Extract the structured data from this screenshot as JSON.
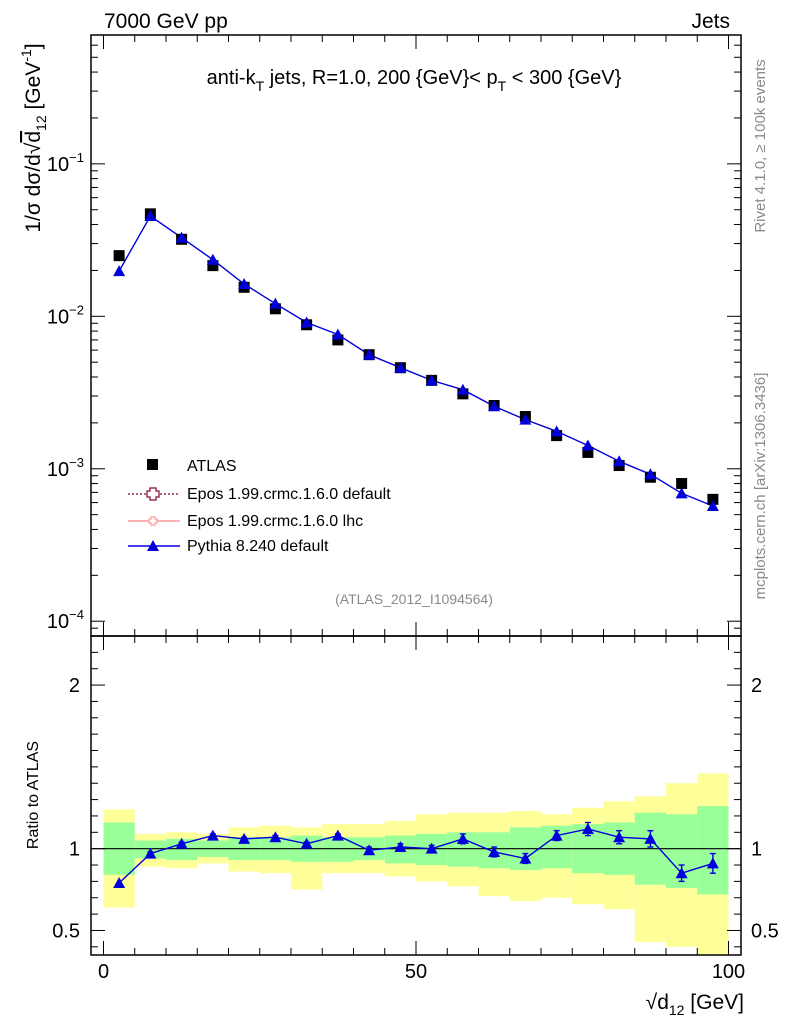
{
  "header": {
    "left": "7000 GeV pp",
    "right": "Jets"
  },
  "side_labels": {
    "top": "Rivet 4.1.0, ≥ 100k events",
    "bottom": "mcplots.cern.ch [arXiv:1306.3436]"
  },
  "colors": {
    "data": "#000000",
    "pythia": "#0000dd",
    "epos_default": "#993355",
    "epos_lhc": "#ff9999",
    "band_green": "#99ff99",
    "band_yellow": "#ffff99"
  },
  "chart_data": [
    {
      "type": "scatter",
      "name": "main",
      "title": "anti-kT jets, R=1.0, 200 {GeV}< pT < 300 {GeV}",
      "title_parts": {
        "a": "anti-k",
        "a_sub": "T",
        "b": " jets, R=1.0, 200 {GeV}< p",
        "b_sub": "T",
        "c": " < 300 {GeV}"
      },
      "ylabel": "1/σ dσ/d√d12 [GeV-1]",
      "ylabel_parts": {
        "a": "1/σ dσ/d",
        "root": "√",
        "d": "d",
        "d_sub": "12",
        "b": " [GeV",
        "sup": "-1",
        "c": "]"
      },
      "yscale": "log",
      "xlim": [
        -2,
        102
      ],
      "ylim": [
        8e-05,
        0.7
      ],
      "ytick_labels": [
        {
          "base": "10",
          "exp": "−1",
          "value": 0.1
        },
        {
          "base": "10",
          "exp": "−2",
          "value": 0.01
        },
        {
          "base": "10",
          "exp": "−3",
          "value": 0.001
        },
        {
          "base": "10",
          "exp": "−4",
          "value": 0.0001
        }
      ],
      "x": [
        2.5,
        7.5,
        12.5,
        17.5,
        22.5,
        27.5,
        32.5,
        37.5,
        42.5,
        47.5,
        52.5,
        57.5,
        62.5,
        67.5,
        72.5,
        77.5,
        82.5,
        87.5,
        92.5,
        97.5
      ],
      "series": [
        {
          "name": "ATLAS",
          "marker": "square",
          "values": [
            0.025,
            0.047,
            0.032,
            0.0215,
            0.0155,
            0.0112,
            0.0088,
            0.007,
            0.0056,
            0.0046,
            0.0038,
            0.0031,
            0.0026,
            0.0022,
            0.00165,
            0.00128,
            0.00105,
            0.00088,
            0.0008,
            0.00063
          ]
        },
        {
          "name": "Epos 1.99.crmc.1.6.0 default",
          "marker": "open-cross",
          "line": "dotted",
          "values": []
        },
        {
          "name": "Epos 1.99.crmc.1.6.0 lhc",
          "marker": "open-cross-small",
          "line": "solid",
          "values": []
        },
        {
          "name": "Pythia 8.240 default",
          "marker": "triangle",
          "line": "solid",
          "values": [
            0.0198,
            0.0455,
            0.0328,
            0.0235,
            0.0163,
            0.0121,
            0.0091,
            0.0076,
            0.0056,
            0.0046,
            0.0038,
            0.0033,
            0.00257,
            0.0021,
            0.00176,
            0.00142,
            0.00112,
            0.00092,
            0.00069,
            0.00057
          ]
        }
      ],
      "watermark": "(ATLAS_2012_I1094564)",
      "legend_position": "lower-left"
    },
    {
      "type": "scatter",
      "name": "ratio",
      "ylabel": "Ratio to ATLAS",
      "xlabel": "√d12 [GeV]",
      "xlabel_parts": {
        "root": "√",
        "d": "d",
        "d_sub": "12",
        "rest": " [GeV]"
      },
      "xlim": [
        -2,
        102
      ],
      "ylim": [
        0.35,
        2.3
      ],
      "xticks": [
        0,
        50,
        100
      ],
      "yticks": [
        0.5,
        1,
        2
      ],
      "ytick_labels": [
        "0.5",
        "1",
        "2"
      ],
      "reference_line": 1,
      "bins": [
        [
          0,
          5
        ],
        [
          5,
          10
        ],
        [
          10,
          15
        ],
        [
          15,
          20
        ],
        [
          20,
          25
        ],
        [
          25,
          30
        ],
        [
          30,
          35
        ],
        [
          35,
          40
        ],
        [
          40,
          45
        ],
        [
          45,
          50
        ],
        [
          50,
          55
        ],
        [
          55,
          60
        ],
        [
          60,
          65
        ],
        [
          65,
          70
        ],
        [
          70,
          75
        ],
        [
          75,
          80
        ],
        [
          80,
          85
        ],
        [
          85,
          90
        ],
        [
          90,
          95
        ],
        [
          95,
          100
        ]
      ],
      "band_yellow": [
        [
          0.64,
          1.24
        ],
        [
          0.89,
          1.09
        ],
        [
          0.88,
          1.1
        ],
        [
          0.91,
          1.09
        ],
        [
          0.86,
          1.13
        ],
        [
          0.85,
          1.14
        ],
        [
          0.75,
          1.13
        ],
        [
          0.85,
          1.15
        ],
        [
          0.85,
          1.15
        ],
        [
          0.83,
          1.17
        ],
        [
          0.8,
          1.21
        ],
        [
          0.77,
          1.22
        ],
        [
          0.71,
          1.22
        ],
        [
          0.68,
          1.23
        ],
        [
          0.7,
          1.21
        ],
        [
          0.66,
          1.25
        ],
        [
          0.63,
          1.29
        ],
        [
          0.43,
          1.32
        ],
        [
          0.4,
          1.4
        ],
        [
          0.34,
          1.46
        ]
      ],
      "band_green": [
        [
          0.84,
          1.16
        ],
        [
          0.94,
          1.05
        ],
        [
          0.93,
          1.06
        ],
        [
          0.95,
          1.05
        ],
        [
          0.93,
          1.07
        ],
        [
          0.93,
          1.07
        ],
        [
          0.92,
          1.08
        ],
        [
          0.92,
          1.07
        ],
        [
          0.93,
          1.07
        ],
        [
          0.91,
          1.08
        ],
        [
          0.9,
          1.09
        ],
        [
          0.89,
          1.1
        ],
        [
          0.88,
          1.1
        ],
        [
          0.87,
          1.13
        ],
        [
          0.88,
          1.14
        ],
        [
          0.85,
          1.15
        ],
        [
          0.84,
          1.16
        ],
        [
          0.78,
          1.22
        ],
        [
          0.76,
          1.21
        ],
        [
          0.72,
          1.26
        ]
      ],
      "series": [
        {
          "name": "Pythia 8.240 default",
          "x": [
            2.5,
            7.5,
            12.5,
            17.5,
            22.5,
            27.5,
            32.5,
            37.5,
            42.5,
            47.5,
            52.5,
            57.5,
            62.5,
            67.5,
            72.5,
            77.5,
            82.5,
            87.5,
            92.5,
            97.5
          ],
          "values": [
            0.79,
            0.97,
            1.03,
            1.08,
            1.06,
            1.07,
            1.03,
            1.08,
            0.99,
            1.01,
            1.0,
            1.06,
            0.98,
            0.94,
            1.08,
            1.12,
            1.07,
            1.06,
            0.85,
            0.91
          ],
          "errors": [
            0.0,
            0.01,
            0.01,
            0.01,
            0.01,
            0.01,
            0.01,
            0.01,
            0.02,
            0.02,
            0.02,
            0.03,
            0.03,
            0.03,
            0.03,
            0.04,
            0.04,
            0.05,
            0.05,
            0.06
          ]
        }
      ]
    }
  ]
}
